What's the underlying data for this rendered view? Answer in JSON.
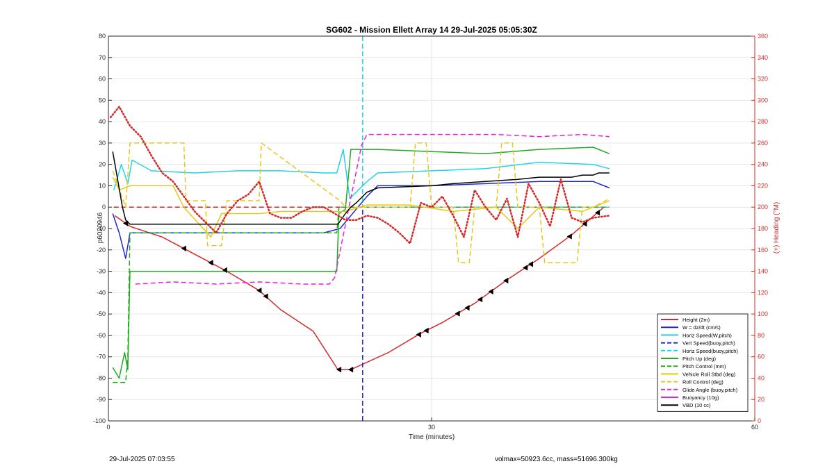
{
  "footer": {
    "timestamp": "29-Jul-2025 07:03:55",
    "summary": "volmax=50923.6cc, mass=51696.300kg"
  },
  "chart_data": {
    "type": "line",
    "title": "SG602 - Mission Ellett Array 14 29-Jul-2025 05:05:30Z",
    "xlabel": "Time (minutes)",
    "ylabel": "p6020946",
    "y2label": "(+) Heading (°M)",
    "xlim": [
      0,
      60
    ],
    "ylim": [
      -100,
      80
    ],
    "y2lim": [
      0,
      360
    ],
    "xticks": [
      0,
      30,
      60
    ],
    "yticks": [
      80,
      70,
      60,
      50,
      40,
      30,
      20,
      10,
      0,
      -10,
      -20,
      -30,
      -40,
      -50,
      -60,
      -70,
      -80,
      -90,
      -100
    ],
    "y2ticks": [
      360,
      340,
      320,
      300,
      280,
      260,
      240,
      220,
      200,
      180,
      160,
      140,
      120,
      100,
      80,
      60,
      40,
      20,
      0
    ],
    "grid": true,
    "legend_position": "bottom-right",
    "colors": {
      "axis": "#262626",
      "grid": "#e6e6e6",
      "right_axis": "#d62728"
    },
    "series": [
      {
        "name": "Height (2m)",
        "color": "#d62728",
        "style": "solid",
        "width": 1.5,
        "x": [
          0.6,
          2,
          5,
          8,
          11,
          14,
          16,
          19,
          21.3,
          22.5,
          26,
          29,
          31,
          34,
          37,
          40,
          43,
          46
        ],
        "y": [
          -4,
          -9,
          -14,
          -22,
          -30,
          -39,
          -48,
          -58,
          -76,
          -76,
          -68,
          -59,
          -54,
          -45,
          -34,
          -24,
          -13,
          0
        ]
      },
      {
        "name": "W = dz/dt (cm/s)",
        "color": "#1f28c8",
        "style": "solid",
        "width": 1.5,
        "x": [
          0.4,
          1,
          1.6,
          2,
          4,
          8,
          12,
          16,
          20,
          21.5,
          22.5,
          24,
          25,
          30,
          35,
          40,
          45,
          46.5
        ],
        "y": [
          -3,
          -12,
          -24,
          -12,
          -12,
          -12,
          -12,
          -12,
          -12,
          -10,
          -4,
          5,
          10,
          10,
          11,
          12,
          12,
          9
        ]
      },
      {
        "name": "Horiz Speed(W,pitch)",
        "color": "#22d3e6",
        "style": "solid",
        "width": 1.5,
        "x": [
          0.5,
          1.2,
          1.8,
          2.2,
          4,
          8,
          12,
          16,
          20,
          21.2,
          21.8,
          22.4,
          24,
          25,
          30,
          35,
          40,
          45,
          46.5
        ],
        "y": [
          8,
          20,
          11,
          22,
          17,
          16,
          17,
          17,
          16,
          16,
          27,
          4,
          12,
          16,
          17,
          18,
          21,
          20,
          18
        ]
      },
      {
        "name": "Vert Speed(buoy,pitch)",
        "color": "#1f28c8",
        "style": "dashed",
        "width": 1.5,
        "x": [
          23.6,
          23.6
        ],
        "y": [
          -100,
          0
        ]
      },
      {
        "name": "Horiz Speed(buoy,pitch)",
        "color": "#22d3e6",
        "style": "dashed",
        "width": 1.5,
        "x": [
          23.6,
          23.6,
          24,
          46.5
        ],
        "y": [
          80,
          0,
          0,
          0
        ]
      },
      {
        "name": "Pitch Up (deg)",
        "color": "#1faa1f",
        "style": "solid",
        "width": 1.5,
        "x": [
          0.4,
          1,
          1.5,
          1.8,
          2,
          4,
          8,
          12,
          16,
          20,
          21.2,
          21.4,
          22,
          22.5,
          25,
          30,
          35,
          40,
          45,
          46.5
        ],
        "y": [
          -75,
          -80,
          -68,
          -76,
          -30,
          -30,
          -30,
          -30,
          -30,
          -30,
          -30,
          -3,
          -1,
          27,
          27,
          26,
          25,
          27,
          28,
          25
        ]
      },
      {
        "name": "Pitch Control (mm)",
        "color": "#1faa1f",
        "style": "dashed",
        "width": 1.5,
        "x": [
          0.4,
          1.6,
          1.8,
          2,
          21.2,
          21.4,
          46.5
        ],
        "y": [
          -82,
          -82,
          -70,
          -12,
          -12,
          0,
          0
        ]
      },
      {
        "name": "Vehicle Roll Stbd (deg)",
        "color": "#e6c81a",
        "style": "solid",
        "width": 1.5,
        "x": [
          0.4,
          1,
          2,
          4,
          6,
          7,
          9.5,
          10.5,
          14,
          16,
          18,
          20,
          22,
          24,
          28,
          32,
          36,
          38,
          40,
          44,
          46.5
        ],
        "y": [
          14,
          8,
          10,
          10,
          10,
          0,
          -14,
          -3,
          -3,
          -2,
          -2,
          -2,
          -2,
          1,
          1,
          -2,
          0,
          -10,
          0,
          -2,
          3
        ]
      },
      {
        "name": "Roll Control (deg)",
        "color": "#e6c81a",
        "style": "dashed",
        "width": 1.5,
        "x": [
          0.4,
          1.6,
          2,
          7,
          7.2,
          9,
          9.2,
          10.5,
          11,
          14,
          14.2,
          21.5,
          22,
          28,
          28.5,
          29.5,
          30,
          32,
          32.5,
          33.5,
          34,
          36,
          36.5,
          37.5,
          38,
          40,
          40.5,
          43.5,
          44,
          45,
          46.5
        ],
        "y": [
          17,
          0,
          30,
          30,
          3,
          3,
          -18,
          -18,
          3,
          3,
          30,
          3,
          0,
          0,
          30,
          30,
          0,
          0,
          -26,
          -26,
          0,
          0,
          30,
          30,
          0,
          0,
          -26,
          -26,
          0,
          0,
          4
        ]
      },
      {
        "name": "Glide Angle (buoy,pitch)",
        "color": "#e61ee6",
        "style": "dashed",
        "width": 1.5,
        "x": [
          2.5,
          6,
          10,
          14,
          18,
          20.5,
          21,
          23.5,
          24,
          28,
          32,
          36,
          40,
          44,
          46.5
        ],
        "y": [
          -36,
          -35,
          -36,
          -35,
          -36,
          -36,
          -33,
          29,
          34,
          34,
          34,
          34,
          33,
          34,
          33
        ]
      },
      {
        "name": "Buoyancy (10g)",
        "color": "#e61ee6",
        "style": "solid",
        "width": 1.5,
        "x": [],
        "y": []
      },
      {
        "name": "VBD (10 cc)",
        "color": "#000000",
        "style": "solid",
        "width": 1.5,
        "x": [
          0.4,
          1.3,
          1.6,
          2,
          21.3,
          22,
          22.5,
          23,
          24,
          25,
          30,
          32,
          35,
          38,
          40,
          42,
          43,
          44,
          45,
          45.5,
          46.5
        ],
        "y": [
          26,
          0,
          -6,
          -8,
          -8,
          -3,
          0,
          2,
          7,
          9,
          10,
          11,
          12,
          13,
          14,
          14,
          14,
          15,
          15,
          16,
          16
        ]
      },
      {
        "name": "",
        "color": "#d62728",
        "style": "dotted",
        "width": 1,
        "x": [
          0.2,
          1,
          2,
          3,
          4,
          5,
          6,
          7,
          8,
          9,
          10,
          11,
          12,
          13,
          14,
          15,
          16,
          17,
          18,
          19,
          20,
          21,
          22,
          23,
          24,
          25,
          26,
          27,
          28,
          29,
          30,
          31,
          32,
          33,
          34,
          35,
          36,
          37,
          38,
          39,
          40,
          41,
          42,
          43,
          44,
          45,
          46.5
        ],
        "y": [
          42,
          47,
          38,
          33,
          24,
          16,
          12,
          5,
          -2,
          -7,
          -12,
          -3,
          3,
          6,
          12,
          -3,
          -5,
          -5,
          -2,
          0,
          0,
          -3,
          -6,
          -6,
          -4,
          -5,
          -8,
          -12,
          -17,
          2,
          0,
          5,
          -4,
          -14,
          8,
          0,
          -6,
          4,
          -14,
          11,
          2,
          -9,
          13,
          -5,
          -7,
          -5,
          -4
        ]
      }
    ],
    "legend": [
      {
        "name": "Height (2m)",
        "color": "#d62728",
        "style": "solid"
      },
      {
        "name": "W = dz/dt (cm/s)",
        "color": "#1f28c8",
        "style": "solid"
      },
      {
        "name": "Horiz Speed(W,pitch)",
        "color": "#22d3e6",
        "style": "solid"
      },
      {
        "name": "Vert Speed(buoy,pitch)",
        "color": "#1f28c8",
        "style": "dashed"
      },
      {
        "name": "Horiz Speed(buoy,pitch)",
        "color": "#22d3e6",
        "style": "dashed"
      },
      {
        "name": "Pitch Up (deg)",
        "color": "#1faa1f",
        "style": "solid"
      },
      {
        "name": "Pitch Control (mm)",
        "color": "#1faa1f",
        "style": "dashed"
      },
      {
        "name": "Vehicle Roll Stbd (deg)",
        "color": "#e6c81a",
        "style": "solid"
      },
      {
        "name": "Roll Control (deg)",
        "color": "#e6c81a",
        "style": "dashed"
      },
      {
        "name": "Glide Angle (buoy,pitch)",
        "color": "#e61ee6",
        "style": "dashed"
      },
      {
        "name": "Buoyancy (10g)",
        "color": "#e61ee6",
        "style": "solid"
      },
      {
        "name": "VBD (10 cc)",
        "color": "#000000",
        "style": "solid"
      }
    ],
    "reference_lines": [
      {
        "y": 0,
        "color": "#d62728",
        "style": "dashed",
        "x_range": [
          0.5,
          23.5
        ]
      }
    ],
    "markers": {
      "series": "Height (2m)",
      "shape": "triangle",
      "color": "#000000",
      "x": [
        1.6,
        7,
        9.5,
        10.8,
        14,
        14.6,
        21.4,
        22.5,
        28.8,
        29.5,
        32.4,
        33.3,
        34.5,
        35.5,
        36.9,
        38.7,
        39.2,
        42.8,
        44.2,
        45.4
      ]
    }
  }
}
